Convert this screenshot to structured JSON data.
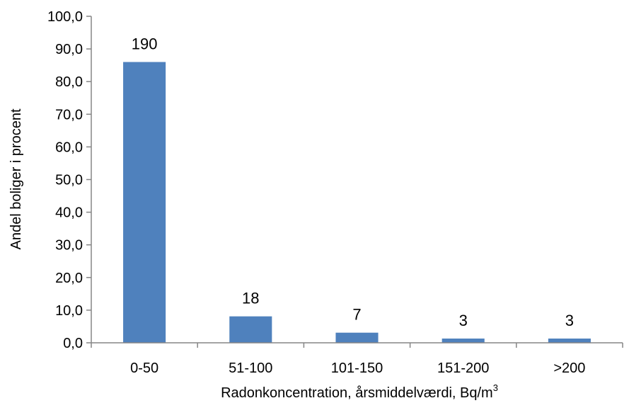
{
  "chart_data": {
    "type": "bar",
    "title": "",
    "categories": [
      "0-50",
      "51-100",
      "101-150",
      "151-200",
      ">200"
    ],
    "values": [
      86.0,
      8.1,
      3.1,
      1.3,
      1.3
    ],
    "data_labels": [
      "190",
      "18",
      "7",
      "3",
      "3"
    ],
    "xlabel": "Radonkoncentration, årsmiddelværdi, Bq/m",
    "xlabel_superscript": "3",
    "ylabel": "Andel boliger i procent",
    "ylim": [
      0,
      100
    ],
    "yticks": [
      0,
      10,
      20,
      30,
      40,
      50,
      60,
      70,
      80,
      90,
      100
    ],
    "ytick_labels": [
      "0,0",
      "10,0",
      "20,0",
      "30,0",
      "40,0",
      "50,0",
      "60,0",
      "70,0",
      "80,0",
      "90,0",
      "100,0"
    ],
    "grid": false,
    "legend": "none",
    "colors": {
      "bar": "#4f81bd",
      "axis": "#868686"
    }
  }
}
